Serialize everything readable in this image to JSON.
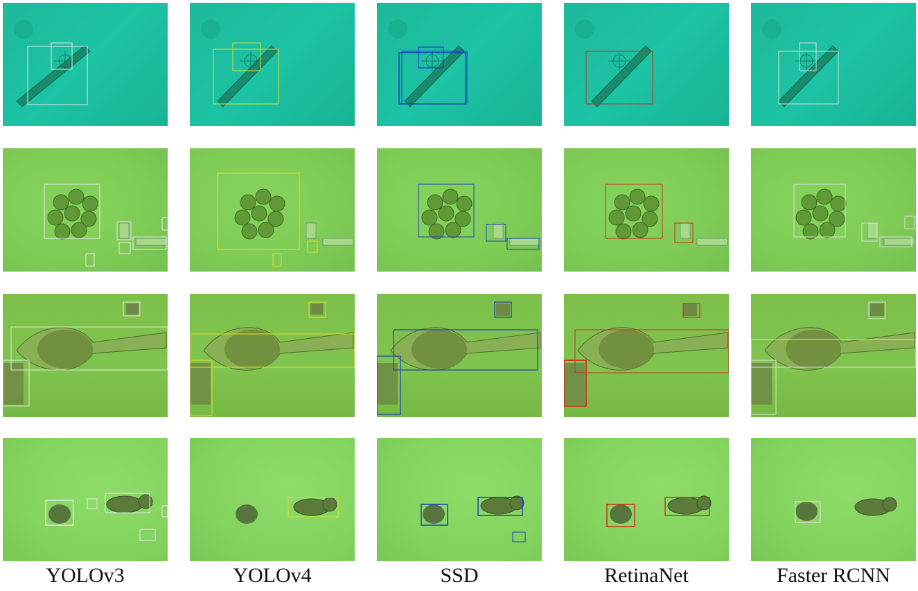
{
  "column_labels": [
    "YOLOv3",
    "YOLOv4",
    "SSD",
    "RetinaNet",
    "Faster RCNN"
  ],
  "box_colors": {
    "YOLOv3": "#e6e6e6",
    "YOLOv4": "#e0e02a",
    "SSD": "#1c3fbf",
    "RetinaNet": "#d42a1f",
    "Faster RCNN": "#dcdcdc"
  },
  "background_colors": [
    "#1fbf9f",
    "#82cf5a",
    "#7cc04a",
    "#87d662"
  ]
}
